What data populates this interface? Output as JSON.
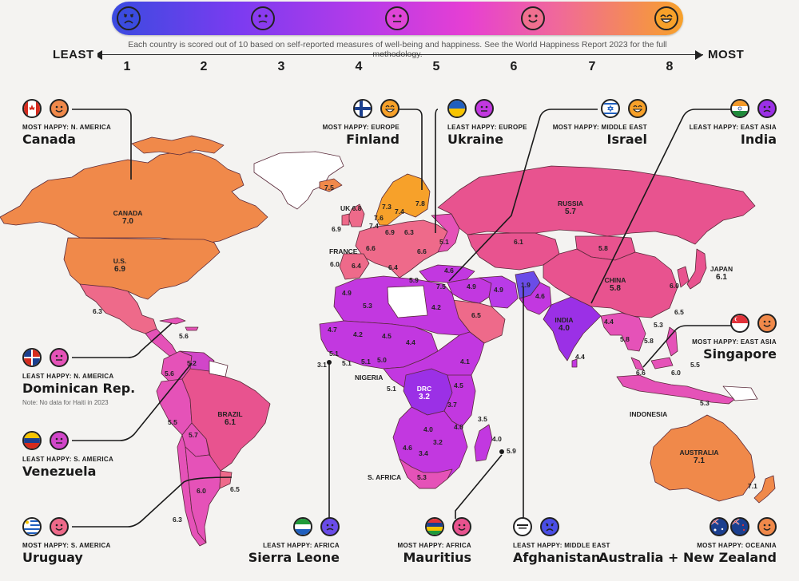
{
  "scale": {
    "note": "Each country is scored out of 10 based on self-reported measures of well-being and happiness. See the World Happiness Report 2023 for the full methodology.",
    "least": "LEAST",
    "most": "MOST",
    "ticks": [
      "1",
      "2",
      "3",
      "4",
      "5",
      "6",
      "7",
      "8"
    ],
    "faces": [
      "very-sad-face-icon",
      "sad-face-icon",
      "neutral-face-icon",
      "smile-face-icon",
      "grin-face-icon"
    ]
  },
  "callouts": {
    "canada": {
      "caption": "MOST HAPPY: N. AMERICA",
      "name": "Canada"
    },
    "finland": {
      "caption": "MOST HAPPY: EUROPE",
      "name": "Finland"
    },
    "ukraine": {
      "caption": "LEAST HAPPY: EUROPE",
      "name": "Ukraine"
    },
    "israel": {
      "caption": "MOST HAPPY: MIDDLE EAST",
      "name": "Israel"
    },
    "india": {
      "caption": "LEAST HAPPY: EAST ASIA",
      "name": "India"
    },
    "singapore": {
      "caption": "MOST HAPPY: EAST ASIA",
      "name": "Singapore"
    },
    "dominican": {
      "caption": "LEAST HAPPY: N. AMERICA",
      "name": "Dominican Rep.",
      "note": "Note: No data for Haiti in 2023"
    },
    "venezuela": {
      "caption": "LEAST HAPPY: S. AMERICA",
      "name": "Venezuela"
    },
    "uruguay": {
      "caption": "MOST HAPPY: S. AMERICA",
      "name": "Uruguay"
    },
    "sierra_leone": {
      "caption": "LEAST HAPPY: AFRICA",
      "name": "Sierra Leone"
    },
    "mauritius": {
      "caption": "MOST HAPPY: AFRICA",
      "name": "Mauritius"
    },
    "afghanistan": {
      "caption": "LEAST HAPPY: MIDDLE EAST",
      "name": "Afghanistan"
    },
    "aus_nz": {
      "caption": "MOST HAPPY: OCEANIA",
      "name": "Australia + New Zealand"
    }
  },
  "labels": {
    "canada": "CANADA",
    "canada_v": "7.0",
    "us": "U.S.",
    "us_v": "6.9",
    "mexico_v": "6.3",
    "greenland_v": "7.5",
    "uk": "UK",
    "uk_v": "6.8",
    "ireland_v": "6.9",
    "france": "FRANCE",
    "france_v": "6.6",
    "spain_v": "6.4",
    "portugal_v": "6.0",
    "norway_v": "7.3",
    "sweden_v": "7.4",
    "finland_v": "7.8",
    "denmark_v": "7.6",
    "netherlands_v": "7.4",
    "germany_v": "6.9",
    "poland_v": "6.3",
    "italy_v": "6.4",
    "greece_v": "5.9",
    "ukraine_v": "5.1",
    "romania_v": "6.6",
    "turkey_v": "4.6",
    "israel_v": "7.5",
    "russia": "RUSSIA",
    "russia_v": "5.7",
    "kazakhstan_v": "6.1",
    "mongolia_v": "5.8",
    "china": "CHINA",
    "china_v": "5.8",
    "japan": "JAPAN",
    "japan_v": "6.1",
    "korea_v": "6.0",
    "taiwan_v": "6.5",
    "iran_v": "4.9",
    "iraq_v": "4.9",
    "pakistan_v": "4.6",
    "afghanistan_v": "1.9",
    "saudi_v": "6.5",
    "india": "INDIA",
    "india_v": "4.0",
    "srilanka_v": "4.4",
    "myanmar_v": "4.4",
    "thailand_v": "5.8",
    "vietnam_v": "5.8",
    "cambodia_v": "5.3",
    "malaysia_v": "6.0",
    "philippines_v": "5.5",
    "singapore_v": "6.6",
    "indonesia": "INDONESIA",
    "indonesia_v": "5.3",
    "morocco_v": "4.9",
    "algeria_v": "5.3",
    "egypt_v": "4.2",
    "mali_v": "4.7",
    "niger_v": "4.2",
    "chad_v": "4.5",
    "sudan_v": "4.4",
    "senegal_v": "5.1",
    "guinea_v": "5.1",
    "sierraleone_v": "3.1",
    "ivorycoast_v": "5.1",
    "nigeria": "NIGERIA",
    "nigeria_v": "5.0",
    "ethiopia_v": "4.1",
    "kenya_v": "4.5",
    "uganda_v": "3.7",
    "tanzania_v": "4.0",
    "congo_v": "5.1",
    "drc": "DRC",
    "drc_v": "3.2",
    "zambia_v": "4.0",
    "malawi_v": "3.5",
    "mozambique_v": "5.0",
    "zimbabwe_v": "3.2",
    "botswana_v": "3.4",
    "namibia_v": "4.6",
    "safrica": "S. AFRICA",
    "safrica_v": "5.3",
    "madagascar_v": "4.0",
    "mauritius_v": "5.9",
    "dominican_v": "5.6",
    "colombia_v": "5.6",
    "venezuela_v": "5.2",
    "ecuador_v": "5.5",
    "peru_v": "5.7",
    "brazil": "BRAZIL",
    "brazil_v": "6.1",
    "chile_v": "6.3",
    "argentina_v": "6.0",
    "uruguay_v": "6.5",
    "australia": "AUSTRALIA",
    "australia_v": "7.1",
    "nz_v": "7.1"
  },
  "colors": {
    "high": "#f0894a",
    "upper": "#ee6a8a",
    "mid": "#e552b8",
    "low": "#c238e0",
    "lower": "#9b30e6",
    "lowest": "#6a4ce8",
    "nodata": "#ffffff"
  }
}
